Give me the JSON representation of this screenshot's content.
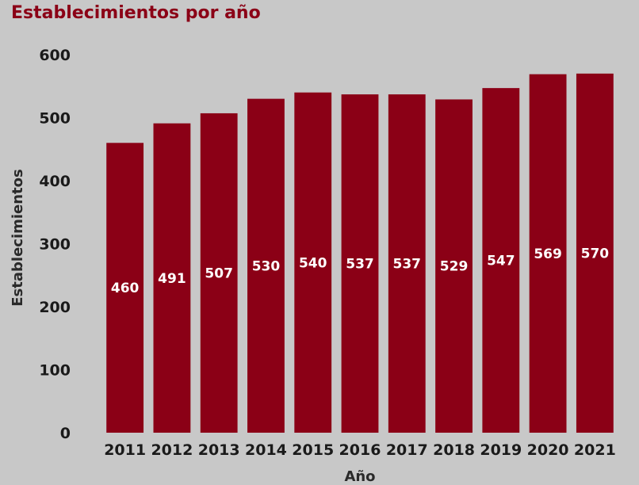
{
  "chart_data": {
    "type": "bar",
    "title": "Establecimientos por año",
    "xlabel": "Año",
    "ylabel": "Establecimientos",
    "categories": [
      "2011",
      "2012",
      "2013",
      "2014",
      "2015",
      "2016",
      "2017",
      "2018",
      "2019",
      "2020",
      "2021"
    ],
    "values": [
      460,
      491,
      507,
      530,
      540,
      537,
      537,
      529,
      547,
      569,
      570
    ],
    "data_labels": [
      "460",
      "491",
      "507",
      "530",
      "540",
      "537",
      "537",
      "529",
      "547",
      "569",
      "570"
    ],
    "ylim": [
      0,
      600
    ],
    "yticks": [
      "0",
      "100",
      "200",
      "300",
      "400",
      "500",
      "600"
    ],
    "bar_color": "#8b0016",
    "grid": false,
    "legend": "none"
  }
}
